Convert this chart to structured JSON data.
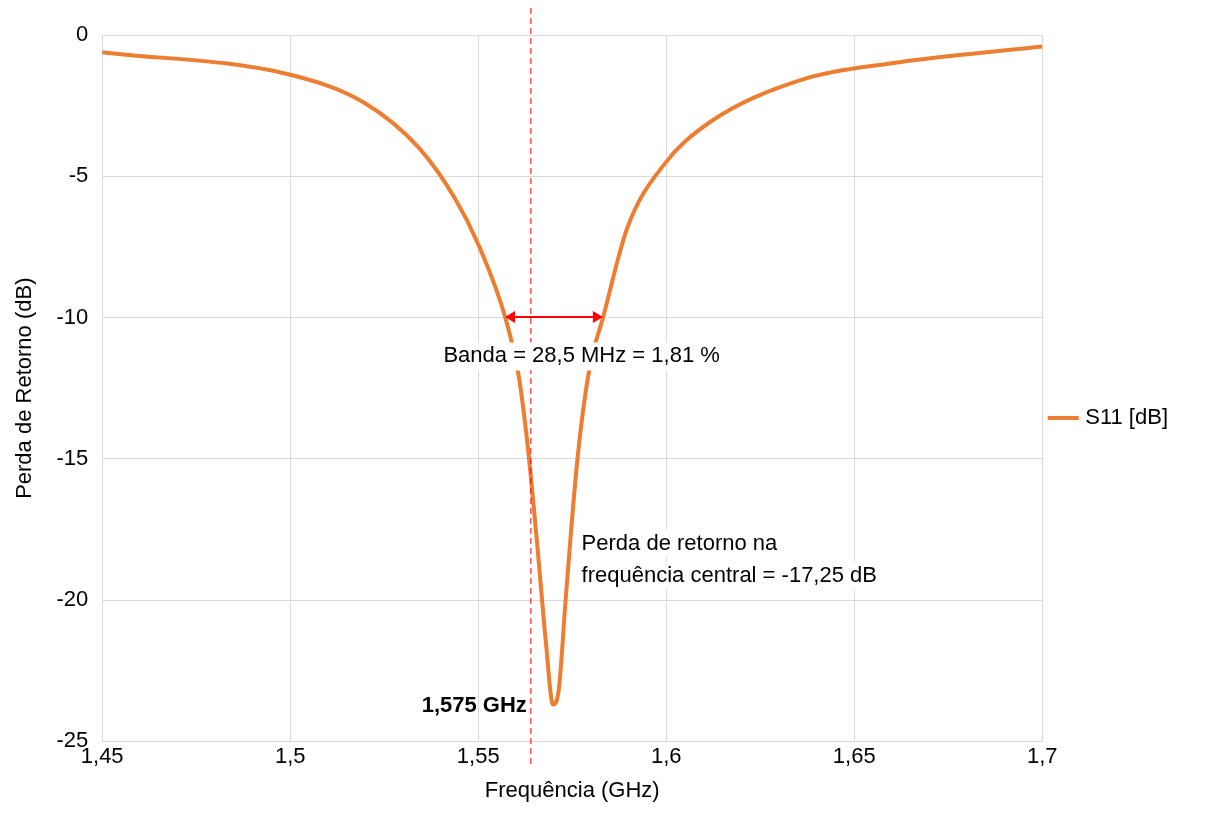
{
  "chart_data": {
    "type": "line",
    "xlabel": "Frequência (GHz)",
    "ylabel": "Perda de Retorno (dB)",
    "x": [
      1.45,
      1.5,
      1.5198,
      1.5343,
      1.5439,
      1.55,
      1.5572,
      1.5608,
      1.5632,
      1.5656,
      1.568,
      1.5699,
      1.5714,
      1.5733,
      1.5764,
      1.5796,
      1.5832,
      1.5897,
      1.5993,
      1.6114,
      1.6355,
      1.6595,
      1.7
    ],
    "series": [
      {
        "name": "S11 [dB]",
        "color": "#ed7d31",
        "values": [
          -0.6,
          -1.4,
          -2.4,
          -4.0,
          -5.8,
          -7.4,
          -10,
          -12.1,
          -14.6,
          -17.9,
          -21.5,
          -23.7,
          -23.2,
          -19.9,
          -15,
          -11.8,
          -10,
          -6.8,
          -4.6,
          -3.1,
          -1.6,
          -1.0,
          -0.4
        ]
      }
    ],
    "xlim": [
      1.45,
      1.7
    ],
    "xticks": [
      {
        "value": 1.45,
        "label": "1,45"
      },
      {
        "value": 1.5,
        "label": "1,5"
      },
      {
        "value": 1.55,
        "label": "1,55"
      },
      {
        "value": 1.6,
        "label": "1,6"
      },
      {
        "value": 1.65,
        "label": "1,65"
      },
      {
        "value": 1.7,
        "label": "1,7"
      }
    ],
    "ylim": [
      -25,
      0
    ],
    "yticks": [
      -25,
      -20,
      -15,
      -10,
      -5,
      0
    ],
    "grid": true,
    "legend": "right",
    "marker": "none",
    "line_style": "solid",
    "ref_lines": [
      {
        "axis": "x",
        "value": 1.564,
        "label": "1,575 GHz",
        "color": "#ff0000",
        "line_style": "dashed"
      }
    ],
    "annotations": [
      "Banda = 28,5 MHz = 1,81 %",
      "Perda de retorno na\nfrequência central = -17,25 dB"
    ]
  }
}
